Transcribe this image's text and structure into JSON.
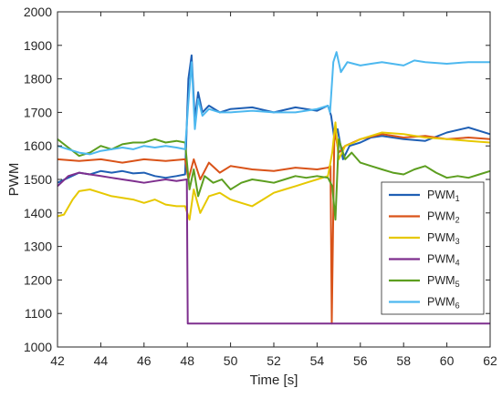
{
  "chart_data": {
    "type": "line",
    "title": "",
    "xlabel": "Time [s]",
    "ylabel": "PWM",
    "xlim": [
      42,
      62
    ],
    "ylim": [
      1000,
      2000
    ],
    "xticks": [
      42,
      44,
      46,
      48,
      50,
      52,
      54,
      56,
      58,
      60,
      62
    ],
    "yticks": [
      1000,
      1100,
      1200,
      1300,
      1400,
      1500,
      1600,
      1700,
      1800,
      1900,
      2000
    ],
    "grid": false,
    "legend_position": "bottom-right",
    "series": [
      {
        "name": "PWM",
        "sub": "1",
        "color": "#1f5fb4",
        "x": [
          42,
          42.5,
          43,
          43.5,
          44,
          44.5,
          45,
          45.5,
          46,
          46.5,
          47,
          47.5,
          47.9,
          48.05,
          48.2,
          48.35,
          48.5,
          48.7,
          49,
          49.5,
          50,
          51,
          52,
          53,
          54,
          54.5,
          54.65,
          54.8,
          54.95,
          55.2,
          55.5,
          56,
          56.5,
          57,
          58,
          59,
          60,
          61,
          62
        ],
        "y": [
          1490,
          1505,
          1520,
          1515,
          1525,
          1520,
          1525,
          1518,
          1520,
          1510,
          1505,
          1510,
          1515,
          1800,
          1870,
          1680,
          1760,
          1700,
          1720,
          1700,
          1710,
          1715,
          1700,
          1715,
          1705,
          1720,
          1690,
          1620,
          1650,
          1560,
          1600,
          1610,
          1625,
          1630,
          1620,
          1615,
          1640,
          1655,
          1635
        ]
      },
      {
        "name": "PWM",
        "sub": "2",
        "color": "#d95319",
        "x": [
          42,
          43,
          44,
          45,
          46,
          47,
          47.9,
          48.05,
          48.3,
          48.6,
          49,
          49.5,
          50,
          51,
          52,
          53,
          54,
          54.5,
          54.62,
          54.68,
          54.8,
          55,
          55.3,
          56,
          57,
          58,
          59,
          60,
          61,
          62
        ],
        "y": [
          1560,
          1555,
          1560,
          1550,
          1560,
          1555,
          1560,
          1500,
          1560,
          1500,
          1550,
          1520,
          1540,
          1530,
          1525,
          1535,
          1530,
          1535,
          1540,
          1070,
          1650,
          1580,
          1600,
          1620,
          1635,
          1625,
          1630,
          1620,
          1625,
          1620
        ]
      },
      {
        "name": "PWM",
        "sub": "3",
        "color": "#e6c800",
        "x": [
          42,
          42.3,
          42.7,
          43,
          43.5,
          44,
          44.5,
          45,
          45.5,
          46,
          46.5,
          47,
          47.5,
          47.9,
          48.1,
          48.3,
          48.6,
          49,
          49.5,
          50,
          50.5,
          51,
          51.5,
          52,
          52.5,
          53,
          53.5,
          54,
          54.5,
          54.7,
          54.85,
          55,
          55.3,
          55.7,
          56,
          57,
          58,
          59,
          60,
          61,
          62
        ],
        "y": [
          1390,
          1395,
          1440,
          1465,
          1470,
          1460,
          1450,
          1445,
          1440,
          1430,
          1440,
          1425,
          1420,
          1420,
          1380,
          1470,
          1400,
          1450,
          1460,
          1440,
          1430,
          1420,
          1440,
          1460,
          1470,
          1480,
          1490,
          1500,
          1510,
          1580,
          1670,
          1560,
          1600,
          1610,
          1620,
          1640,
          1635,
          1625,
          1620,
          1615,
          1610
        ]
      },
      {
        "name": "PWM",
        "sub": "4",
        "color": "#7e2f8e",
        "x": [
          42,
          42.5,
          43,
          43.5,
          44,
          44.5,
          45,
          45.5,
          46,
          46.5,
          47,
          47.5,
          47.98,
          48.02,
          50,
          52,
          54,
          56,
          58,
          60,
          62
        ],
        "y": [
          1480,
          1510,
          1520,
          1515,
          1510,
          1505,
          1500,
          1495,
          1490,
          1495,
          1500,
          1495,
          1500,
          1070,
          1070,
          1070,
          1070,
          1070,
          1070,
          1070,
          1070
        ]
      },
      {
        "name": "PWM",
        "sub": "5",
        "color": "#5c9e1f",
        "x": [
          42,
          42.5,
          43,
          43.5,
          44,
          44.5,
          45,
          45.5,
          46,
          46.5,
          47,
          47.5,
          47.9,
          48.1,
          48.3,
          48.5,
          48.8,
          49.2,
          49.6,
          50,
          50.5,
          51,
          51.5,
          52,
          52.5,
          53,
          53.5,
          54,
          54.5,
          54.7,
          54.85,
          55,
          55.3,
          55.6,
          56,
          56.5,
          57,
          57.5,
          58,
          58.5,
          59,
          59.5,
          60,
          60.5,
          61,
          61.5,
          62
        ],
        "y": [
          1620,
          1595,
          1570,
          1580,
          1600,
          1590,
          1605,
          1610,
          1610,
          1620,
          1610,
          1615,
          1610,
          1470,
          1530,
          1450,
          1510,
          1490,
          1500,
          1470,
          1490,
          1500,
          1495,
          1490,
          1500,
          1510,
          1505,
          1510,
          1505,
          1480,
          1380,
          1620,
          1560,
          1580,
          1550,
          1540,
          1530,
          1520,
          1515,
          1530,
          1540,
          1520,
          1505,
          1510,
          1505,
          1515,
          1525
        ]
      },
      {
        "name": "PWM",
        "sub": "6",
        "color": "#4db8ef",
        "x": [
          42,
          42.5,
          43,
          43.5,
          44,
          44.5,
          45,
          45.5,
          46,
          46.5,
          47,
          47.5,
          47.9,
          48.05,
          48.2,
          48.35,
          48.5,
          48.7,
          49,
          49.5,
          50,
          51,
          52,
          53,
          54,
          54.5,
          54.6,
          54.75,
          54.9,
          55.1,
          55.4,
          56,
          56.5,
          57,
          58,
          58.5,
          59,
          60,
          61,
          62
        ],
        "y": [
          1600,
          1590,
          1580,
          1575,
          1585,
          1590,
          1595,
          1590,
          1600,
          1595,
          1600,
          1595,
          1590,
          1730,
          1850,
          1650,
          1740,
          1690,
          1710,
          1700,
          1700,
          1705,
          1700,
          1700,
          1710,
          1720,
          1700,
          1850,
          1880,
          1820,
          1850,
          1840,
          1845,
          1850,
          1840,
          1855,
          1850,
          1845,
          1850,
          1850
        ]
      }
    ]
  }
}
